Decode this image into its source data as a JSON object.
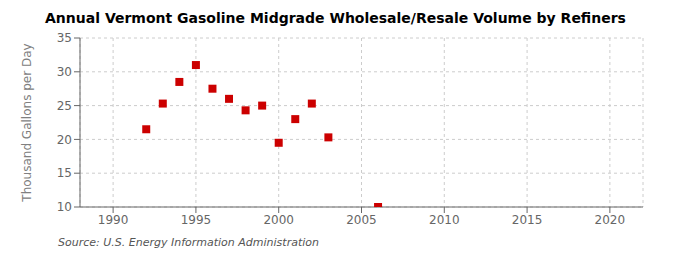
{
  "chart_data": {
    "type": "scatter",
    "title": "Annual Vermont Gasoline Midgrade Wholesale/Resale Volume by Refiners",
    "ylabel": "Thousand Gallons per Day",
    "annotation": "Source: U.S. Energy Information Administration",
    "x": [
      1992,
      1993,
      1994,
      1995,
      1996,
      1997,
      1998,
      1999,
      2000,
      2001,
      2002,
      2003,
      2006
    ],
    "values": [
      21.5,
      25.3,
      28.5,
      31.0,
      27.5,
      26.0,
      24.3,
      25.0,
      19.5,
      23.0,
      25.3,
      20.3,
      10.0
    ],
    "color": "#cc0000",
    "marker": "square",
    "xlim": [
      1988,
      2022
    ],
    "ylim": [
      10,
      35
    ],
    "xticks": [
      1990,
      1995,
      2000,
      2005,
      2010,
      2015,
      2020
    ],
    "yticks": [
      10,
      15,
      20,
      25,
      30,
      35
    ],
    "grid": true
  }
}
